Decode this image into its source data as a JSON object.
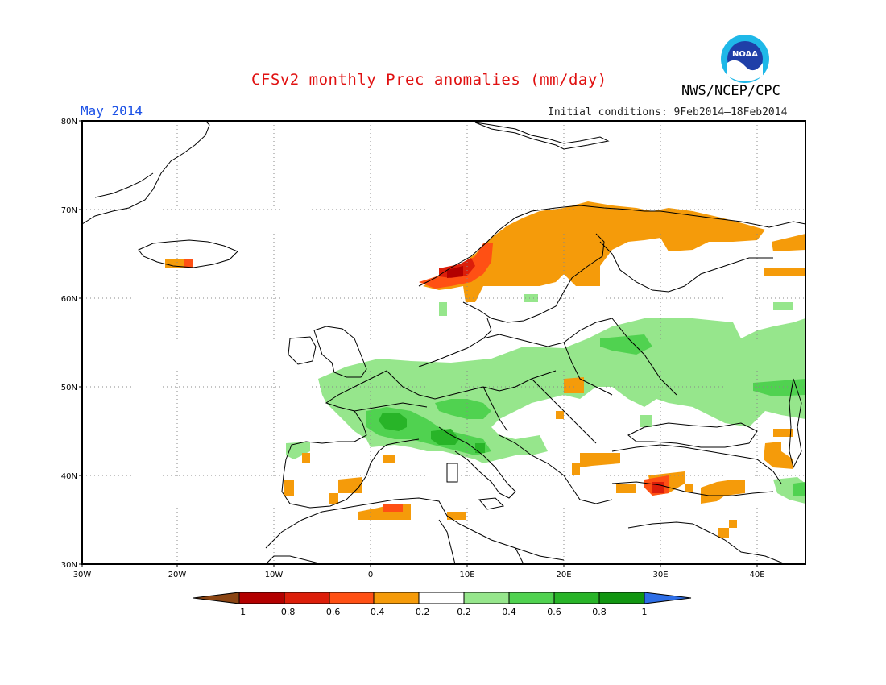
{
  "header": {
    "title": "CFSv2 monthly Prec anomalies (mm/day)",
    "month": "May 2014",
    "initial_conditions": "Initial conditions: 9Feb2014–18Feb2014",
    "agency": "NWS/NCEP/CPC",
    "logo_text": "NOAA"
  },
  "axes": {
    "lat_labels": [
      "80N",
      "70N",
      "60N",
      "50N",
      "40N",
      "30N"
    ],
    "lon_labels": [
      "30W",
      "20W",
      "10W",
      "0",
      "10E",
      "20E",
      "30E",
      "40E"
    ]
  },
  "colorbar": {
    "labels": [
      "−1",
      "−0.8",
      "−0.6",
      "−0.4",
      "−0.2",
      "0.2",
      "0.4",
      "0.6",
      "0.8",
      "1"
    ],
    "colors": [
      "#8b4513",
      "#b30000",
      "#dc1e0a",
      "#ff5014",
      "#f59b0a",
      "#ffffff",
      "#96e68c",
      "#50d250",
      "#28b428",
      "#119611",
      "#2e6ee6"
    ]
  },
  "anomaly_colors": {
    "light_orange": "#f59b0a",
    "orange_red": "#ff5014",
    "red": "#dc1e0a",
    "dark_red": "#b30000",
    "light_green": "#96e68c",
    "green": "#50d250",
    "medium_green": "#28b428",
    "dark_green": "#119611"
  }
}
